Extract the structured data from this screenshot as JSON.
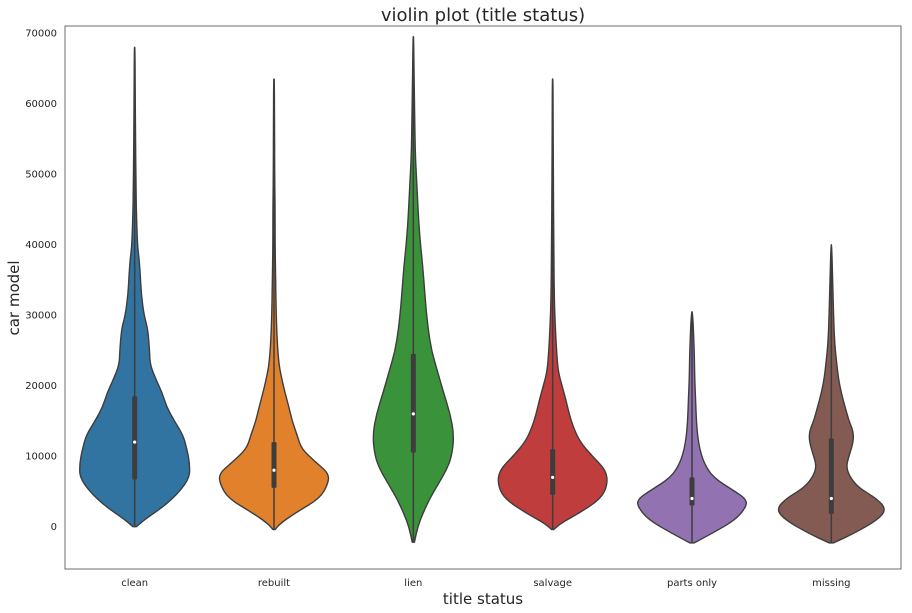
{
  "chart_data": {
    "type": "violin",
    "title": "violin plot (title status)",
    "xlabel": "title status",
    "ylabel": "car model",
    "ylim": [
      -6000,
      71000
    ],
    "yticks": [
      0,
      10000,
      20000,
      30000,
      40000,
      50000,
      60000,
      70000
    ],
    "ytick_labels": [
      "0",
      "10000",
      "20000",
      "30000",
      "40000",
      "50000",
      "60000",
      "70000"
    ],
    "grid": false,
    "categories": [
      "clean",
      "rebuilt",
      "lien",
      "salvage",
      "parts only",
      "missing"
    ],
    "series": [
      {
        "category": "clean",
        "color": "#3274a1",
        "min": 0,
        "max": 68000,
        "q1": 6700,
        "median": 12000,
        "q3": 18500,
        "density": [
          [
            0,
            0.03
          ],
          [
            1000,
            0.18
          ],
          [
            3000,
            0.55
          ],
          [
            5000,
            0.82
          ],
          [
            7000,
            1.0
          ],
          [
            9000,
            1.0
          ],
          [
            11000,
            0.95
          ],
          [
            13000,
            0.88
          ],
          [
            15000,
            0.72
          ],
          [
            17000,
            0.58
          ],
          [
            19000,
            0.5
          ],
          [
            21000,
            0.38
          ],
          [
            23000,
            0.28
          ],
          [
            25000,
            0.27
          ],
          [
            28000,
            0.24
          ],
          [
            30000,
            0.17
          ],
          [
            33000,
            0.12
          ],
          [
            36000,
            0.1
          ],
          [
            38000,
            0.08
          ],
          [
            40000,
            0.05
          ],
          [
            45000,
            0.03
          ],
          [
            48000,
            0.025
          ],
          [
            55000,
            0.015
          ],
          [
            62000,
            0.01
          ],
          [
            68000,
            0.005
          ]
        ]
      },
      {
        "category": "rebuilt",
        "color": "#e1812c",
        "min": -400,
        "max": 63500,
        "q1": 5500,
        "median": 8000,
        "q3": 12000,
        "density": [
          [
            -400,
            0.02
          ],
          [
            500,
            0.12
          ],
          [
            2000,
            0.4
          ],
          [
            4000,
            0.83
          ],
          [
            6000,
            0.98
          ],
          [
            7500,
            1.0
          ],
          [
            9000,
            0.78
          ],
          [
            11000,
            0.5
          ],
          [
            13000,
            0.42
          ],
          [
            15000,
            0.33
          ],
          [
            17000,
            0.27
          ],
          [
            19000,
            0.2
          ],
          [
            21000,
            0.14
          ],
          [
            23000,
            0.09
          ],
          [
            26000,
            0.06
          ],
          [
            30000,
            0.04
          ],
          [
            35000,
            0.03
          ],
          [
            40000,
            0.02
          ],
          [
            45000,
            0.02
          ],
          [
            50000,
            0.012
          ],
          [
            58000,
            0.01
          ],
          [
            63500,
            0.005
          ]
        ]
      },
      {
        "category": "lien",
        "color": "#3a923a",
        "min": -2200,
        "max": 69500,
        "q1": 10500,
        "median": 16000,
        "q3": 24500,
        "density": [
          [
            -2200,
            0.02
          ],
          [
            0,
            0.08
          ],
          [
            2000,
            0.18
          ],
          [
            4000,
            0.3
          ],
          [
            6000,
            0.45
          ],
          [
            8000,
            0.6
          ],
          [
            10000,
            0.7
          ],
          [
            13000,
            0.74
          ],
          [
            16000,
            0.67
          ],
          [
            19000,
            0.55
          ],
          [
            22000,
            0.44
          ],
          [
            25000,
            0.33
          ],
          [
            28000,
            0.27
          ],
          [
            31000,
            0.23
          ],
          [
            34000,
            0.2
          ],
          [
            37000,
            0.17
          ],
          [
            40000,
            0.13
          ],
          [
            43000,
            0.1
          ],
          [
            46000,
            0.08
          ],
          [
            49000,
            0.06
          ],
          [
            53000,
            0.035
          ],
          [
            58000,
            0.025
          ],
          [
            63000,
            0.015
          ],
          [
            69500,
            0.005
          ]
        ]
      },
      {
        "category": "salvage",
        "color": "#c03d3e",
        "min": -400,
        "max": 63500,
        "q1": 4500,
        "median": 7000,
        "q3": 11000,
        "density": [
          [
            -400,
            0.02
          ],
          [
            500,
            0.15
          ],
          [
            2000,
            0.5
          ],
          [
            4000,
            0.88
          ],
          [
            6000,
            1.0
          ],
          [
            8000,
            0.97
          ],
          [
            10000,
            0.72
          ],
          [
            12000,
            0.5
          ],
          [
            14000,
            0.38
          ],
          [
            16000,
            0.3
          ],
          [
            18000,
            0.24
          ],
          [
            20000,
            0.17
          ],
          [
            22000,
            0.1
          ],
          [
            25000,
            0.07
          ],
          [
            28000,
            0.05
          ],
          [
            32000,
            0.03
          ],
          [
            40000,
            0.02
          ],
          [
            50000,
            0.012
          ],
          [
            58000,
            0.008
          ],
          [
            63500,
            0.005
          ]
        ]
      },
      {
        "category": "parts only",
        "color": "#9372b2",
        "min": -2300,
        "max": 30500,
        "q1": 3000,
        "median": 4000,
        "q3": 7000,
        "density": [
          [
            -2300,
            0.04
          ],
          [
            -1000,
            0.35
          ],
          [
            1000,
            0.8
          ],
          [
            3000,
            1.0
          ],
          [
            4000,
            0.97
          ],
          [
            5000,
            0.78
          ],
          [
            7000,
            0.38
          ],
          [
            9000,
            0.22
          ],
          [
            11000,
            0.14
          ],
          [
            13000,
            0.1
          ],
          [
            15000,
            0.08
          ],
          [
            17000,
            0.07
          ],
          [
            19000,
            0.06
          ],
          [
            21000,
            0.05
          ],
          [
            23000,
            0.045
          ],
          [
            25000,
            0.04
          ],
          [
            27000,
            0.03
          ],
          [
            29000,
            0.02
          ],
          [
            30500,
            0.005
          ]
        ]
      },
      {
        "category": "missing",
        "color": "#845b53",
        "min": -2300,
        "max": 40000,
        "q1": 1800,
        "median": 4000,
        "q3": 12500,
        "density": [
          [
            -2300,
            0.04
          ],
          [
            -1000,
            0.4
          ],
          [
            1000,
            0.85
          ],
          [
            2500,
            1.0
          ],
          [
            4000,
            0.82
          ],
          [
            5500,
            0.5
          ],
          [
            7000,
            0.34
          ],
          [
            8500,
            0.27
          ],
          [
            10000,
            0.32
          ],
          [
            12000,
            0.4
          ],
          [
            13500,
            0.4
          ],
          [
            15000,
            0.32
          ],
          [
            17000,
            0.25
          ],
          [
            19000,
            0.18
          ],
          [
            21000,
            0.13
          ],
          [
            23000,
            0.1
          ],
          [
            26000,
            0.06
          ],
          [
            30000,
            0.04
          ],
          [
            35000,
            0.025
          ],
          [
            40000,
            0.005
          ]
        ]
      }
    ]
  }
}
